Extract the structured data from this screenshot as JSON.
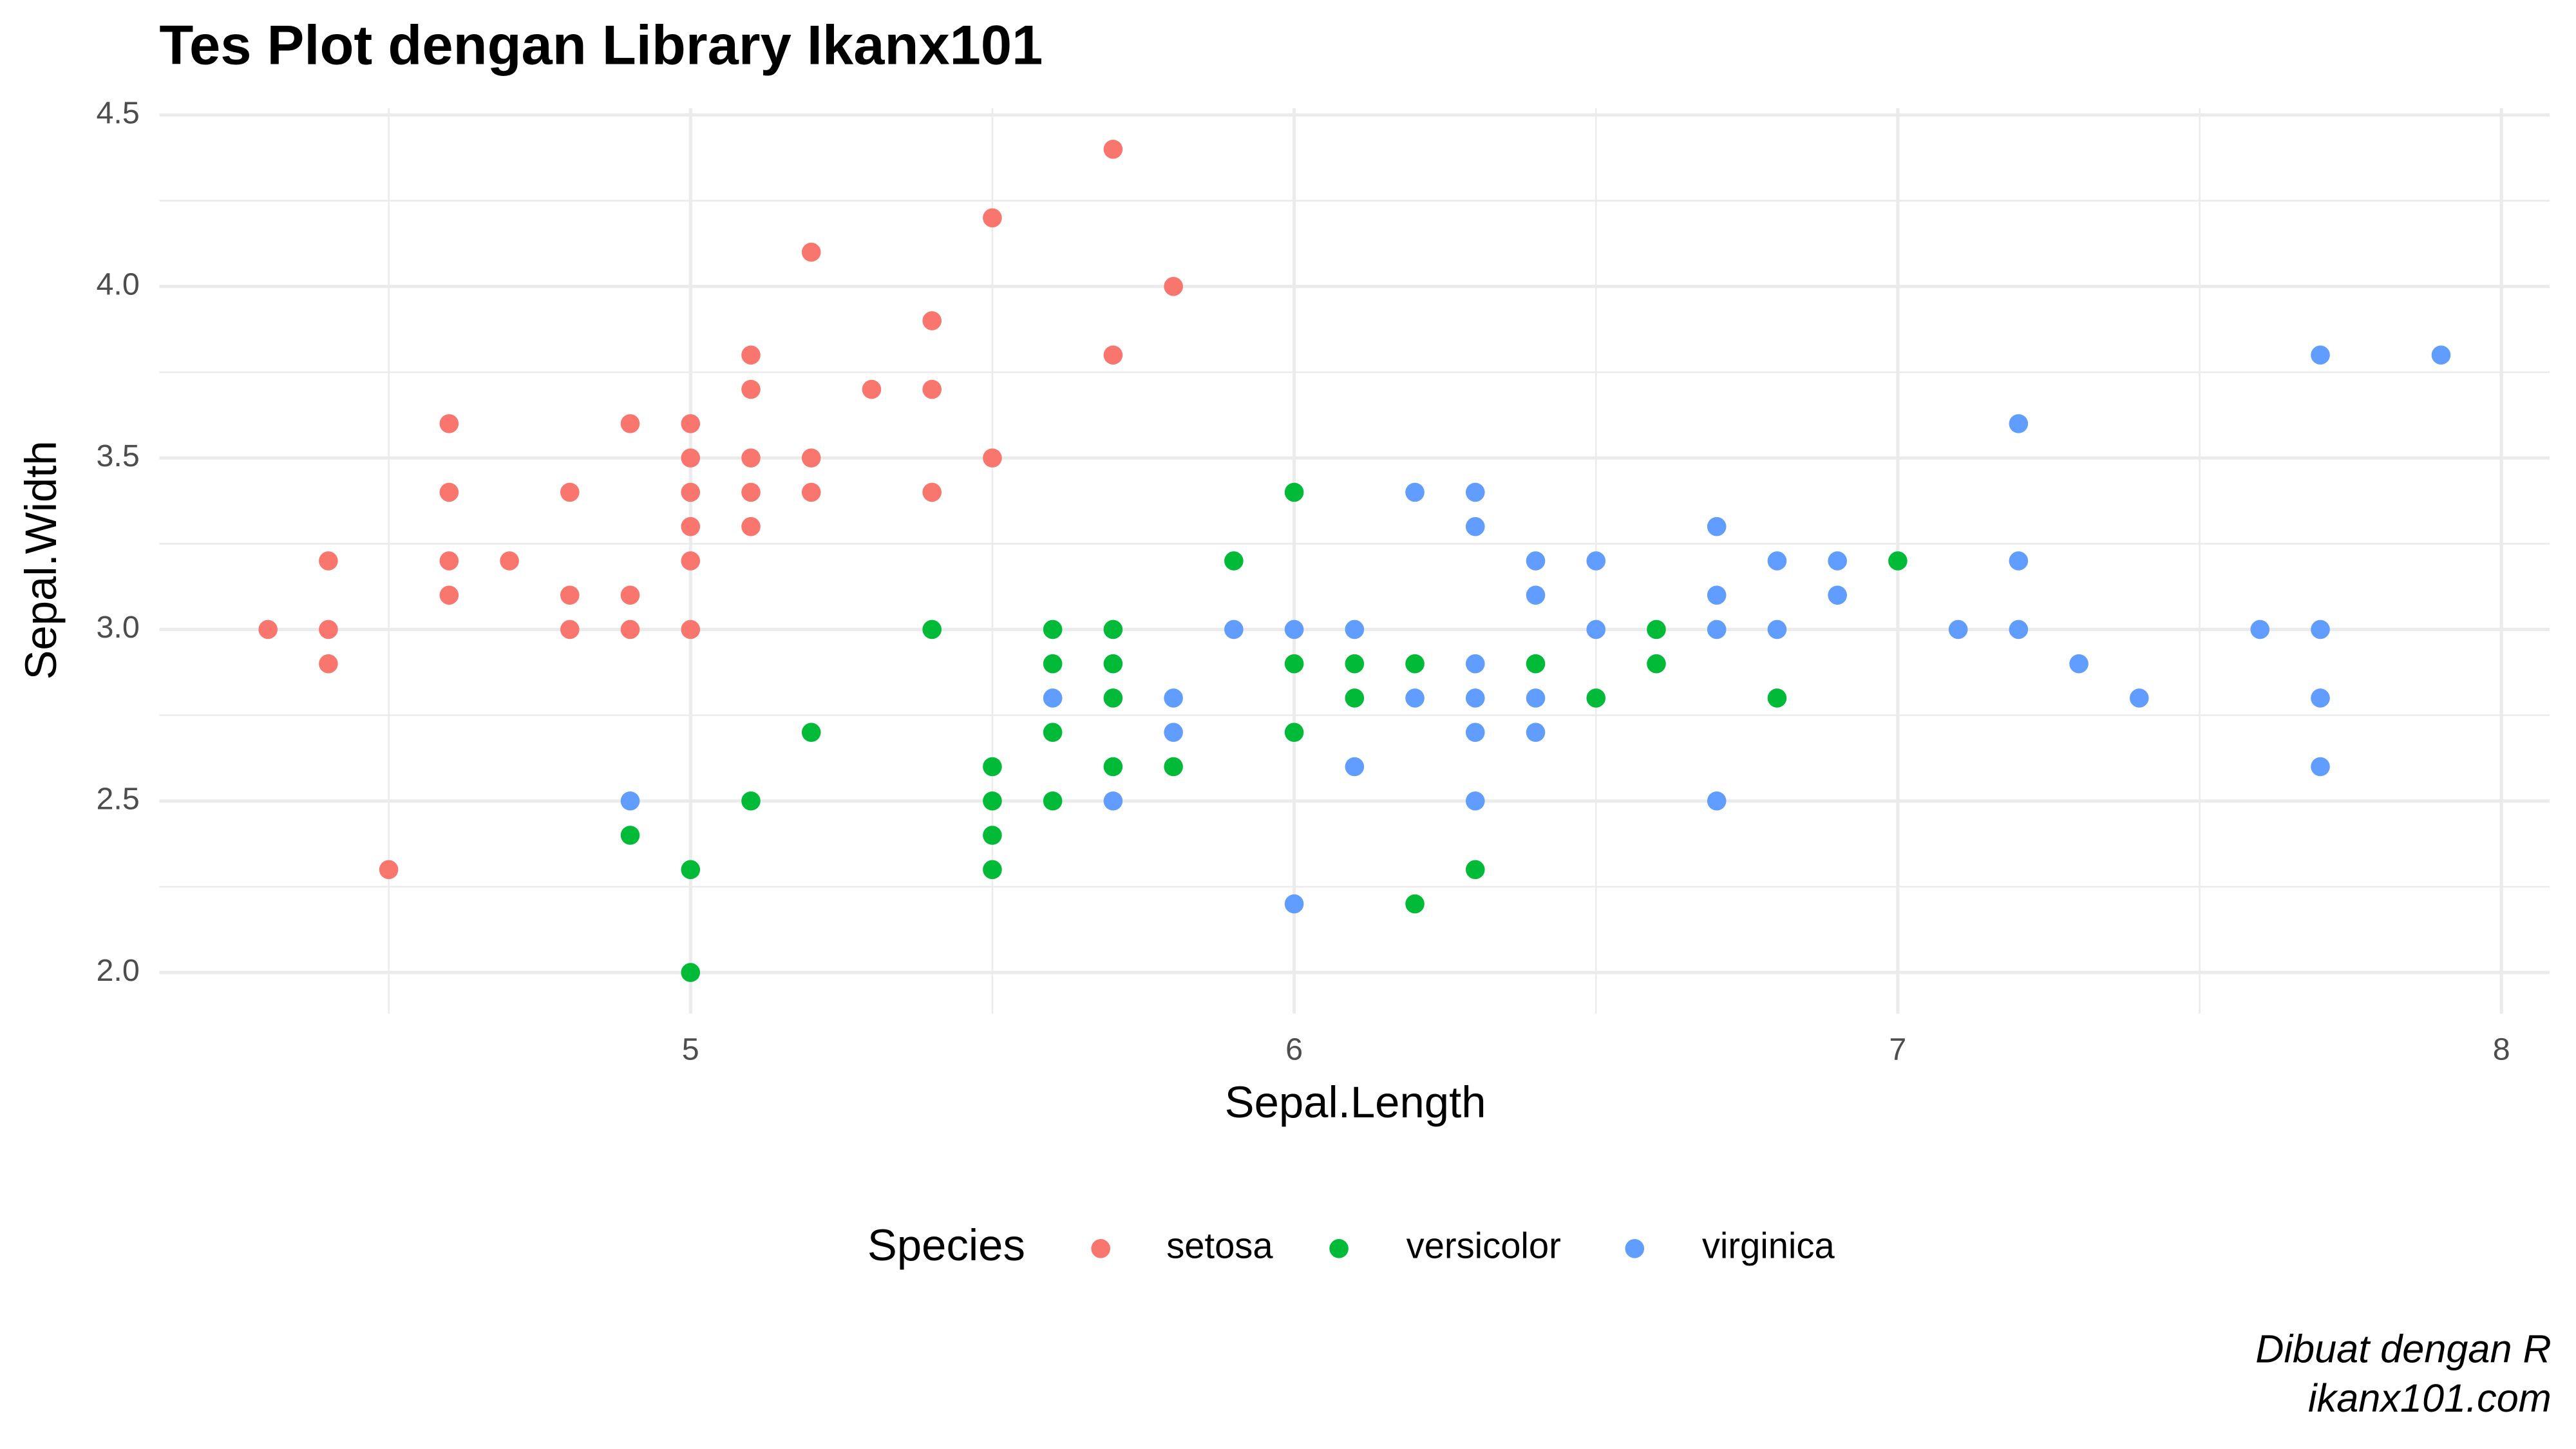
{
  "chart_data": {
    "type": "scatter",
    "title": "Tes Plot dengan Library Ikanx101",
    "x_label": "Sepal.Length",
    "y_label": "Sepal.Width",
    "legend_title": "Species",
    "legend_position": "bottom",
    "caption": [
      "Dibuat dengan R",
      "ikanx101.com"
    ],
    "grid": true,
    "xlim": [
      4.12,
      8.08
    ],
    "ylim": [
      1.88,
      4.52
    ],
    "xticks": [
      5,
      6,
      7,
      8
    ],
    "yticks": [
      {
        "value": 2,
        "label": "2.0"
      },
      {
        "value": 2.5,
        "label": "2.5"
      },
      {
        "value": 3,
        "label": "3.0"
      },
      {
        "value": 3.5,
        "label": "3.5"
      },
      {
        "value": 4,
        "label": "4.0"
      },
      {
        "value": 4.5,
        "label": "4.5"
      }
    ],
    "xminor": [
      4.5,
      5.5,
      6.5,
      7.5
    ],
    "yminor": [
      2.25,
      2.75,
      3.25,
      3.75,
      4.25
    ],
    "series": [
      {
        "name": "setosa",
        "color": "#f8766d",
        "x": [
          4.3,
          4.4,
          4.4,
          4.4,
          4.5,
          4.6,
          4.6,
          4.6,
          4.6,
          4.7,
          4.8,
          4.8,
          4.8,
          4.9,
          4.9,
          4.9,
          5.0,
          5.0,
          5.0,
          5.0,
          5.0,
          5.0,
          5.1,
          5.1,
          5.1,
          5.1,
          5.1,
          5.2,
          5.2,
          5.2,
          5.3,
          5.4,
          5.4,
          5.4,
          5.5,
          5.5,
          5.7,
          5.7,
          5.8
        ],
        "y": [
          3.0,
          3.2,
          3.0,
          2.9,
          2.3,
          3.6,
          3.4,
          3.2,
          3.1,
          3.2,
          3.4,
          3.1,
          3.0,
          3.6,
          3.1,
          3.0,
          3.6,
          3.5,
          3.4,
          3.3,
          3.2,
          3.0,
          3.8,
          3.7,
          3.5,
          3.4,
          3.3,
          4.1,
          3.5,
          3.4,
          3.7,
          3.9,
          3.7,
          3.4,
          4.2,
          3.5,
          4.4,
          3.8,
          4.0
        ]
      },
      {
        "name": "versicolor",
        "color": "#00ba38",
        "x": [
          4.9,
          5.0,
          5.0,
          5.1,
          5.2,
          5.4,
          5.5,
          5.5,
          5.5,
          5.5,
          5.6,
          5.6,
          5.6,
          5.6,
          5.7,
          5.7,
          5.7,
          5.7,
          5.8,
          5.9,
          6.0,
          6.0,
          6.0,
          6.1,
          6.1,
          6.2,
          6.2,
          6.3,
          6.4,
          6.5,
          6.6,
          6.6,
          6.8,
          7.0
        ],
        "y": [
          2.4,
          2.3,
          2.0,
          2.5,
          2.7,
          3.0,
          2.6,
          2.5,
          2.4,
          2.3,
          3.0,
          2.9,
          2.7,
          2.5,
          3.0,
          2.9,
          2.8,
          2.6,
          2.6,
          3.2,
          3.4,
          2.9,
          2.7,
          2.9,
          2.8,
          2.9,
          2.2,
          2.3,
          2.9,
          2.8,
          3.0,
          2.9,
          2.8,
          3.2
        ]
      },
      {
        "name": "virginica",
        "color": "#619cff",
        "x": [
          4.9,
          5.6,
          5.7,
          5.8,
          5.8,
          5.9,
          6.0,
          6.0,
          6.1,
          6.1,
          6.2,
          6.2,
          6.3,
          6.3,
          6.3,
          6.3,
          6.3,
          6.3,
          6.4,
          6.4,
          6.4,
          6.4,
          6.5,
          6.5,
          6.7,
          6.7,
          6.7,
          6.7,
          6.8,
          6.8,
          6.9,
          6.9,
          7.1,
          7.2,
          7.2,
          7.2,
          7.3,
          7.4,
          7.6,
          7.7,
          7.7,
          7.7,
          7.7,
          7.9
        ],
        "y": [
          2.5,
          2.8,
          2.5,
          2.8,
          2.7,
          3.0,
          3.0,
          2.2,
          3.0,
          2.6,
          3.4,
          2.8,
          3.4,
          3.3,
          2.9,
          2.8,
          2.7,
          2.5,
          3.2,
          3.1,
          2.8,
          2.7,
          3.2,
          3.0,
          3.3,
          3.1,
          3.0,
          2.5,
          3.2,
          3.0,
          3.2,
          3.1,
          3.0,
          3.6,
          3.2,
          3.0,
          2.9,
          2.8,
          3.0,
          3.8,
          3.0,
          2.8,
          2.6,
          3.8
        ]
      }
    ]
  }
}
